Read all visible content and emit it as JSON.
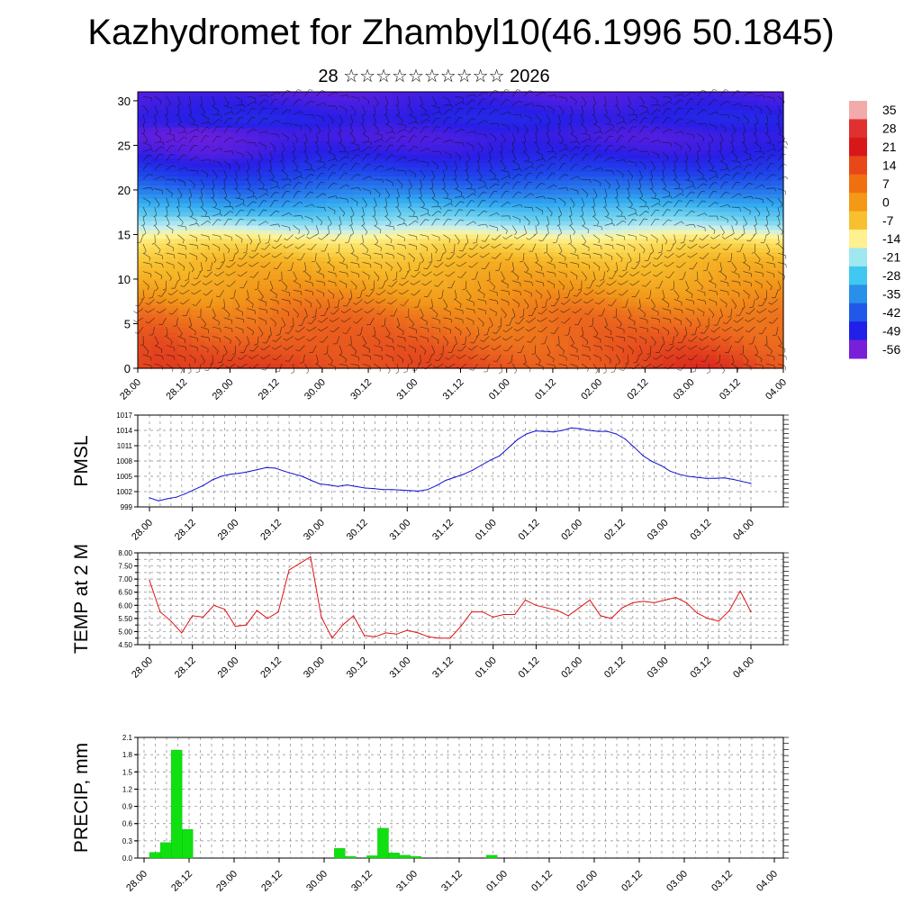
{
  "header": {
    "title": "Kazhydromet for Zhambyl10(46.1996 50.1845)",
    "subtitle": "28 ☆☆☆☆☆☆☆☆☆☆ 2026"
  },
  "chart_data": [
    {
      "id": "cross-section",
      "type": "heatmap",
      "title": "",
      "xlabel": "",
      "ylabel": "",
      "x_ticks": [
        "28.00",
        "28.12",
        "29.00",
        "29.12",
        "30.00",
        "30.12",
        "31.00",
        "31.12",
        "01.00",
        "01.12",
        "02.00",
        "02.12",
        "03.00",
        "03.12",
        "04.00"
      ],
      "y_ticks": [
        "0",
        "5",
        "10",
        "15",
        "20",
        "25",
        "30"
      ],
      "ylim": [
        0,
        31
      ],
      "colorbar": {
        "labels": [
          "35",
          "28",
          "21",
          "14",
          "7",
          "0",
          "-7",
          "-14",
          "-21",
          "-28",
          "-35",
          "-42",
          "-49",
          "-56"
        ],
        "colors": [
          "#f2aaaa",
          "#e03030",
          "#d81818",
          "#e84818",
          "#f07010",
          "#f49818",
          "#f8c030",
          "#fff090",
          "#a0e8f0",
          "#40c8f0",
          "#2890e8",
          "#2058e8",
          "#2020e8",
          "#7820d8"
        ]
      },
      "temperature_by_level": {
        "levels": [
          0,
          3,
          6,
          9,
          12,
          14,
          15,
          16,
          18,
          20,
          22,
          24,
          26,
          28,
          31
        ],
        "values": [
          12,
          10,
          8,
          4,
          0,
          -5,
          -10,
          -16,
          -25,
          -36,
          -45,
          -52,
          -55,
          -51,
          -56
        ]
      }
    },
    {
      "id": "pmsl",
      "type": "line",
      "ylabel": "PMSL",
      "color": "#1010d0",
      "ylim": [
        999,
        1017
      ],
      "y_ticks": [
        "999",
        "1002",
        "1005",
        "1008",
        "1011",
        "1014",
        "1017"
      ],
      "x_ticks": [
        "28.00",
        "28.12",
        "29.00",
        "29.12",
        "30.00",
        "30.12",
        "31.00",
        "31.12",
        "01.00",
        "01.12",
        "02.00",
        "02.12",
        "03.00",
        "03.12",
        "04.00"
      ],
      "values": [
        1000.8,
        1000.2,
        1000.6,
        1000.9,
        1001.6,
        1002.4,
        1003.2,
        1004.3,
        1005.0,
        1005.4,
        1005.6,
        1005.9,
        1006.3,
        1006.7,
        1006.6,
        1006.0,
        1005.5,
        1005.0,
        1004.2,
        1003.5,
        1003.3,
        1003.0,
        1003.3,
        1003.0,
        1002.7,
        1002.6,
        1002.4,
        1002.4,
        1002.3,
        1002.2,
        1002.1,
        1002.4,
        1003.2,
        1004.2,
        1004.8,
        1005.4,
        1006.2,
        1007.2,
        1008.2,
        1009.0,
        1010.6,
        1012.2,
        1013.3,
        1013.9,
        1013.8,
        1013.7,
        1014.0,
        1014.5,
        1014.3,
        1014.0,
        1013.8,
        1013.8,
        1013.3,
        1012.3,
        1010.7,
        1009.0,
        1007.9,
        1007.1,
        1006.0,
        1005.4,
        1005.0,
        1004.8,
        1004.6,
        1004.6,
        1004.7,
        1004.4,
        1004.0,
        1003.6
      ]
    },
    {
      "id": "temp2m",
      "type": "line",
      "ylabel": "TEMP at 2 M",
      "color": "#e01010",
      "ylim": [
        4.5,
        8.0
      ],
      "y_ticks": [
        "4.50",
        "4.75",
        "5.00",
        "5.25",
        "5.50",
        "5.75",
        "6.00",
        "6.25",
        "6.50",
        "6.75",
        "7.00",
        "7.25",
        "7.50",
        "7.75",
        "8.00"
      ],
      "y_label_ticks": [
        "4.50",
        "5.00",
        "5.50",
        "6.00",
        "6.50",
        "7.00",
        "7.50",
        "8.00"
      ],
      "x_ticks": [
        "28.00",
        "28.12",
        "29.00",
        "29.12",
        "30.00",
        "30.12",
        "31.00",
        "31.12",
        "01.00",
        "01.12",
        "02.00",
        "02.12",
        "03.00",
        "03.12",
        "04.00"
      ],
      "values": [
        6.95,
        5.75,
        5.4,
        4.95,
        5.6,
        5.55,
        6.0,
        5.85,
        5.2,
        5.25,
        5.8,
        5.5,
        5.75,
        7.35,
        7.6,
        7.85,
        5.55,
        4.75,
        5.25,
        5.6,
        4.85,
        4.8,
        4.95,
        4.9,
        5.05,
        4.95,
        4.8,
        4.75,
        4.75,
        5.2,
        5.75,
        5.75,
        5.55,
        5.65,
        5.65,
        6.2,
        6.0,
        5.9,
        5.8,
        5.6,
        5.9,
        6.2,
        5.6,
        5.5,
        5.9,
        6.1,
        6.15,
        6.1,
        6.2,
        6.3,
        6.1,
        5.7,
        5.5,
        5.4,
        5.8,
        6.55,
        5.75
      ]
    },
    {
      "id": "precip",
      "type": "bar",
      "ylabel": "PRECIP, mm",
      "color": "#10e010",
      "ylim": [
        0,
        2.1
      ],
      "y_ticks": [
        "0.0",
        "0.3",
        "0.6",
        "0.9",
        "1.2",
        "1.5",
        "1.8",
        "2.1"
      ],
      "x_ticks": [
        "28.00",
        "28.12",
        "29.00",
        "29.12",
        "30.00",
        "30.12",
        "31.00",
        "31.12",
        "01.00",
        "01.12",
        "02.00",
        "02.12",
        "03.00",
        "03.12",
        "04.00"
      ],
      "values": [
        0.1,
        0.27,
        1.88,
        0.5,
        0,
        0,
        0,
        0,
        0,
        0,
        0,
        0,
        0,
        0,
        0,
        0,
        0,
        0.17,
        0.03,
        0,
        0.04,
        0.52,
        0.09,
        0.05,
        0.03,
        0,
        0,
        0,
        0,
        0,
        0,
        0.05,
        0,
        0,
        0,
        0,
        0,
        0,
        0,
        0,
        0,
        0,
        0,
        0,
        0,
        0,
        0,
        0,
        0,
        0,
        0,
        0,
        0,
        0,
        0,
        0,
        0,
        0
      ]
    }
  ]
}
